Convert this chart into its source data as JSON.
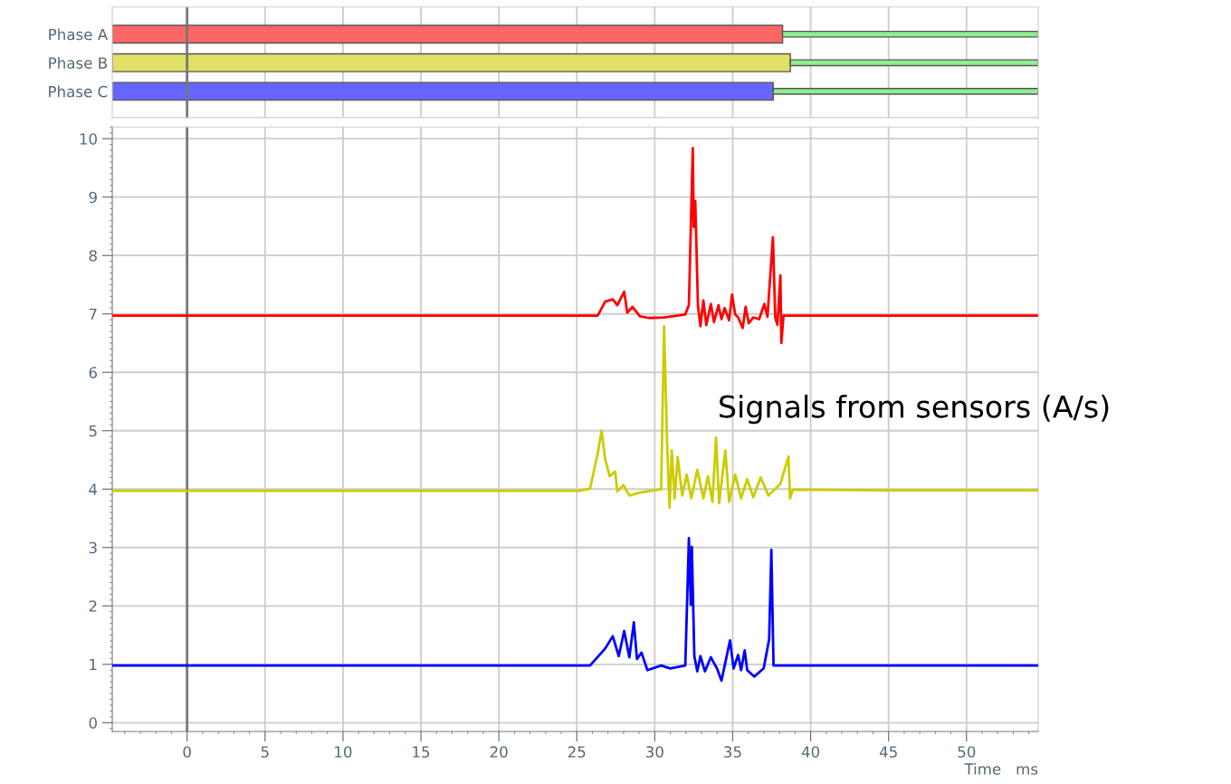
{
  "chart_data": [
    {
      "type": "bar",
      "orientation": "horizontal",
      "categories": [
        "Phase A",
        "Phase B",
        "Phase C"
      ],
      "series": [
        {
          "colors": [
            "#ff6666",
            "#e0e066",
            "#6666ff"
          ],
          "base": [
            -4.8,
            -4.8,
            -4.8
          ],
          "values": [
            43.0,
            43.5,
            42.4
          ]
        },
        {
          "color": "#90ee90",
          "base": [
            38.2,
            38.7,
            37.6
          ],
          "values": [
            16.4,
            15.9,
            17.0
          ]
        }
      ],
      "xlim": [
        -4.8,
        54.6
      ],
      "xticks": [
        0,
        5,
        10,
        15,
        20,
        25,
        30,
        35,
        40,
        45,
        50
      ],
      "tick_labels": "y",
      "grid": "x",
      "ref_lines": [
        {
          "axis": "x",
          "value": 0,
          "color": "#777777"
        }
      ]
    },
    {
      "type": "line",
      "xlabel": "Time   ms",
      "xlim": [
        -4.8,
        54.6
      ],
      "ylim": [
        -0.15,
        10.2
      ],
      "xticks": [
        0,
        5,
        10,
        15,
        20,
        25,
        30,
        35,
        40,
        45,
        50
      ],
      "yticks": [
        0,
        1,
        2,
        3,
        4,
        5,
        6,
        7,
        8,
        9,
        10
      ],
      "grid": true,
      "marker": "none",
      "line_style": "solid",
      "ref_lines": [
        {
          "axis": "x",
          "value": 0,
          "color": "#777777"
        }
      ],
      "annotations": [
        "Signals from sensors (A/s)"
      ],
      "series": [
        {
          "color": "#ff0000",
          "x": [
            -4.8,
            10,
            25.17,
            26.34,
            26.82,
            27.31,
            27.6,
            28.04,
            28.24,
            28.57,
            29.05,
            29.63,
            30.6,
            31.96,
            32.19,
            32.44,
            32.5,
            32.6,
            32.77,
            32.93,
            33.12,
            33.31,
            33.6,
            33.8,
            34.09,
            34.28,
            34.48,
            34.77,
            34.96,
            35.16,
            35.35,
            35.64,
            35.83,
            36.03,
            36.32,
            36.7,
            37.03,
            37.23,
            37.58,
            37.73,
            37.87,
            38.06,
            38.12,
            38.26,
            45,
            54.6
          ],
          "values": [
            6.97,
            6.97,
            6.97,
            6.97,
            7.21,
            7.25,
            7.15,
            7.38,
            7.02,
            7.12,
            6.96,
            6.93,
            6.94,
            6.99,
            7.15,
            9.84,
            8.49,
            8.93,
            7.15,
            6.79,
            7.23,
            6.81,
            7.17,
            6.86,
            7.15,
            6.91,
            7.1,
            6.89,
            7.33,
            6.99,
            6.94,
            6.76,
            7.12,
            6.84,
            6.94,
            6.91,
            7.17,
            6.95,
            8.31,
            6.94,
            6.81,
            7.66,
            6.5,
            6.97,
            6.97,
            6.97
          ]
        },
        {
          "color": "#cccc00",
          "x": [
            -4.8,
            10,
            25.17,
            25.85,
            26.34,
            26.59,
            26.82,
            27.11,
            27.46,
            27.6,
            27.99,
            28.37,
            29.05,
            30.41,
            30.6,
            30.79,
            30.95,
            31.09,
            31.28,
            31.47,
            31.76,
            32.05,
            32.34,
            32.73,
            33.12,
            33.41,
            33.7,
            33.93,
            34.13,
            34.53,
            34.77,
            35.16,
            35.54,
            35.93,
            36.32,
            36.8,
            37.29,
            38.06,
            38.58,
            38.68,
            38.86,
            45,
            54.6
          ],
          "values": [
            3.97,
            3.97,
            3.97,
            4.01,
            4.61,
            5.0,
            4.51,
            4.22,
            4.3,
            3.96,
            4.07,
            3.89,
            3.94,
            4.0,
            6.79,
            4.81,
            3.68,
            4.66,
            3.84,
            4.55,
            3.89,
            4.25,
            3.84,
            4.33,
            3.84,
            4.22,
            3.78,
            4.88,
            3.76,
            4.66,
            3.78,
            4.25,
            3.84,
            4.17,
            3.86,
            4.2,
            3.89,
            4.09,
            4.56,
            3.84,
            3.99,
            3.98,
            3.98
          ]
        },
        {
          "color": "#0000ff",
          "x": [
            -4.8,
            10,
            25.17,
            25.85,
            26.82,
            27.31,
            27.69,
            28.04,
            28.37,
            28.66,
            28.86,
            29.15,
            29.53,
            30.41,
            30.99,
            31.96,
            32.19,
            32.31,
            32.38,
            32.54,
            32.73,
            32.93,
            33.22,
            33.6,
            33.99,
            34.28,
            34.83,
            35.06,
            35.35,
            35.54,
            35.77,
            35.93,
            36.38,
            36.99,
            37.34,
            37.48,
            37.62,
            45,
            54.6
          ],
          "values": [
            0.98,
            0.98,
            0.98,
            0.98,
            1.27,
            1.48,
            1.14,
            1.57,
            1.12,
            1.72,
            1.09,
            1.2,
            0.9,
            0.98,
            0.93,
            0.98,
            3.16,
            2.02,
            3.01,
            1.14,
            0.88,
            1.14,
            0.88,
            1.12,
            0.93,
            0.72,
            1.41,
            0.93,
            1.16,
            0.9,
            1.24,
            0.9,
            0.79,
            0.93,
            1.43,
            2.96,
            0.98,
            0.98,
            0.98
          ]
        }
      ]
    }
  ]
}
